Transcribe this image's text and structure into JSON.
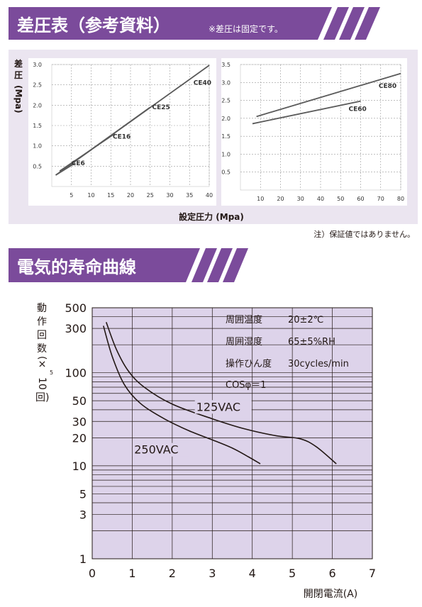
{
  "section1": {
    "title": "差圧表（参考資料）",
    "note": "※差圧は固定です。",
    "ylabel_chars": [
      "差",
      "圧"
    ],
    "ylabel_unit": "(Mpa)",
    "xlabel": "設定圧力 (Mpa)",
    "footnote": "注）保証値ではありません。"
  },
  "section2": {
    "title": "電気的寿命曲線",
    "ylabel_chars": [
      "動",
      "作",
      "回",
      "数"
    ],
    "ylabel_paren": "(×",
    "ylabel_exp": "5",
    "ylabel_unit": "10",
    "ylabel_unit2": "回)",
    "xlabel": "開閉電流(A)",
    "conditions": [
      {
        "label": "周囲温度",
        "value": "20±2℃"
      },
      {
        "label": "周囲湿度",
        "value": "65±5%RH"
      },
      {
        "label": "操作ひん度",
        "value": "30cycles/min"
      },
      {
        "label": "COSφ＝1",
        "value": ""
      }
    ]
  },
  "colors": {
    "header": "#7b4b9b",
    "plot_bg": "#ddd3ea",
    "panel_bg": "#ebe5f0",
    "line": "#5a5a5a",
    "curve": "#231815"
  },
  "chart_data": [
    {
      "type": "line",
      "title": "",
      "xlabel": "設定圧力 (Mpa)",
      "ylabel": "差圧 (Mpa)",
      "xlim": [
        0,
        40
      ],
      "ylim": [
        0,
        3.0
      ],
      "xticks": [
        5,
        10,
        15,
        20,
        25,
        30,
        35,
        40
      ],
      "yticks": [
        0.5,
        1.0,
        1.5,
        2.0,
        2.5,
        3.0
      ],
      "xtick_labels": [
        "5",
        "10",
        "15",
        "20",
        "25",
        "30",
        "35",
        "40"
      ],
      "ytick_labels": [
        "0.5",
        "1.0",
        "1.5",
        "2.0",
        "2.5",
        "3.0"
      ],
      "grid": true,
      "series": [
        {
          "name": "CE40",
          "x": [
            1,
            40
          ],
          "y": [
            0.28,
            2.98
          ]
        },
        {
          "name": "CE25",
          "x": [
            2,
            25
          ],
          "y": [
            0.35,
            1.95
          ]
        },
        {
          "name": "CE16",
          "x": [
            2,
            16
          ],
          "y": [
            0.38,
            1.3
          ]
        },
        {
          "name": "CE6",
          "x": [
            1,
            6
          ],
          "y": [
            0.28,
            0.58
          ]
        }
      ],
      "label_positions": {
        "CE40": [
          36,
          2.5
        ],
        "CE25": [
          25.5,
          1.9
        ],
        "CE16": [
          15.5,
          1.18
        ],
        "CE6": [
          5,
          0.52
        ]
      }
    },
    {
      "type": "line",
      "title": "",
      "xlabel": "設定圧力 (Mpa)",
      "ylabel": "差圧 (Mpa)",
      "xlim": [
        0,
        80
      ],
      "ylim": [
        0,
        3.5
      ],
      "xticks": [
        10,
        20,
        30,
        40,
        50,
        60,
        70,
        80
      ],
      "yticks": [
        0.5,
        1.0,
        1.5,
        2.0,
        2.5,
        3.0,
        3.5
      ],
      "xtick_labels": [
        "10",
        "20",
        "30",
        "40",
        "50",
        "60",
        "70",
        "80"
      ],
      "ytick_labels": [
        "0.5",
        "1.0",
        "1.5",
        "2.0",
        "2.5",
        "3.0",
        "3.5"
      ],
      "grid": true,
      "series": [
        {
          "name": "CE80",
          "x": [
            8,
            80
          ],
          "y": [
            2.05,
            3.25
          ]
        },
        {
          "name": "CE60",
          "x": [
            6,
            60
          ],
          "y": [
            1.85,
            2.48
          ]
        }
      ],
      "label_positions": {
        "CE80": [
          69,
          2.85
        ],
        "CE60": [
          54,
          2.2
        ]
      }
    },
    {
      "type": "line",
      "title": "",
      "xlabel": "開閉電流(A)",
      "ylabel": "動作回数(×10⁵回)",
      "xlim": [
        0,
        7
      ],
      "ylim": [
        1,
        500
      ],
      "yscale": "log",
      "xticks": [
        0,
        1,
        2,
        3,
        4,
        5,
        6,
        7
      ],
      "yticks": [
        1,
        3,
        5,
        10,
        20,
        30,
        50,
        100,
        300,
        500
      ],
      "xtick_labels": [
        "0",
        "1",
        "2",
        "3",
        "4",
        "5",
        "6",
        "7"
      ],
      "ytick_labels": [
        "1",
        "3",
        "5",
        "10",
        "20",
        "30",
        "50",
        "100",
        "300",
        "500"
      ],
      "grid": true,
      "series": [
        {
          "name": "125VAC",
          "x": [
            0.35,
            0.6,
            0.9,
            1.3,
            2.0,
            3.0,
            3.8,
            4.6,
            5.2,
            5.6,
            6.1
          ],
          "y": [
            350,
            180,
            105,
            70,
            46,
            32,
            25,
            21,
            19.5,
            16,
            10.5
          ]
        },
        {
          "name": "250VAC",
          "x": [
            0.28,
            0.5,
            0.8,
            1.2,
            1.8,
            2.4,
            3.0,
            3.5,
            3.9,
            4.2
          ],
          "y": [
            320,
            150,
            75,
            47,
            32,
            24,
            19,
            15.5,
            12.5,
            10.5
          ]
        }
      ],
      "label_positions": {
        "125VAC": [
          2.6,
          39
        ],
        "250VAC": [
          1.05,
          13.5
        ]
      }
    }
  ]
}
